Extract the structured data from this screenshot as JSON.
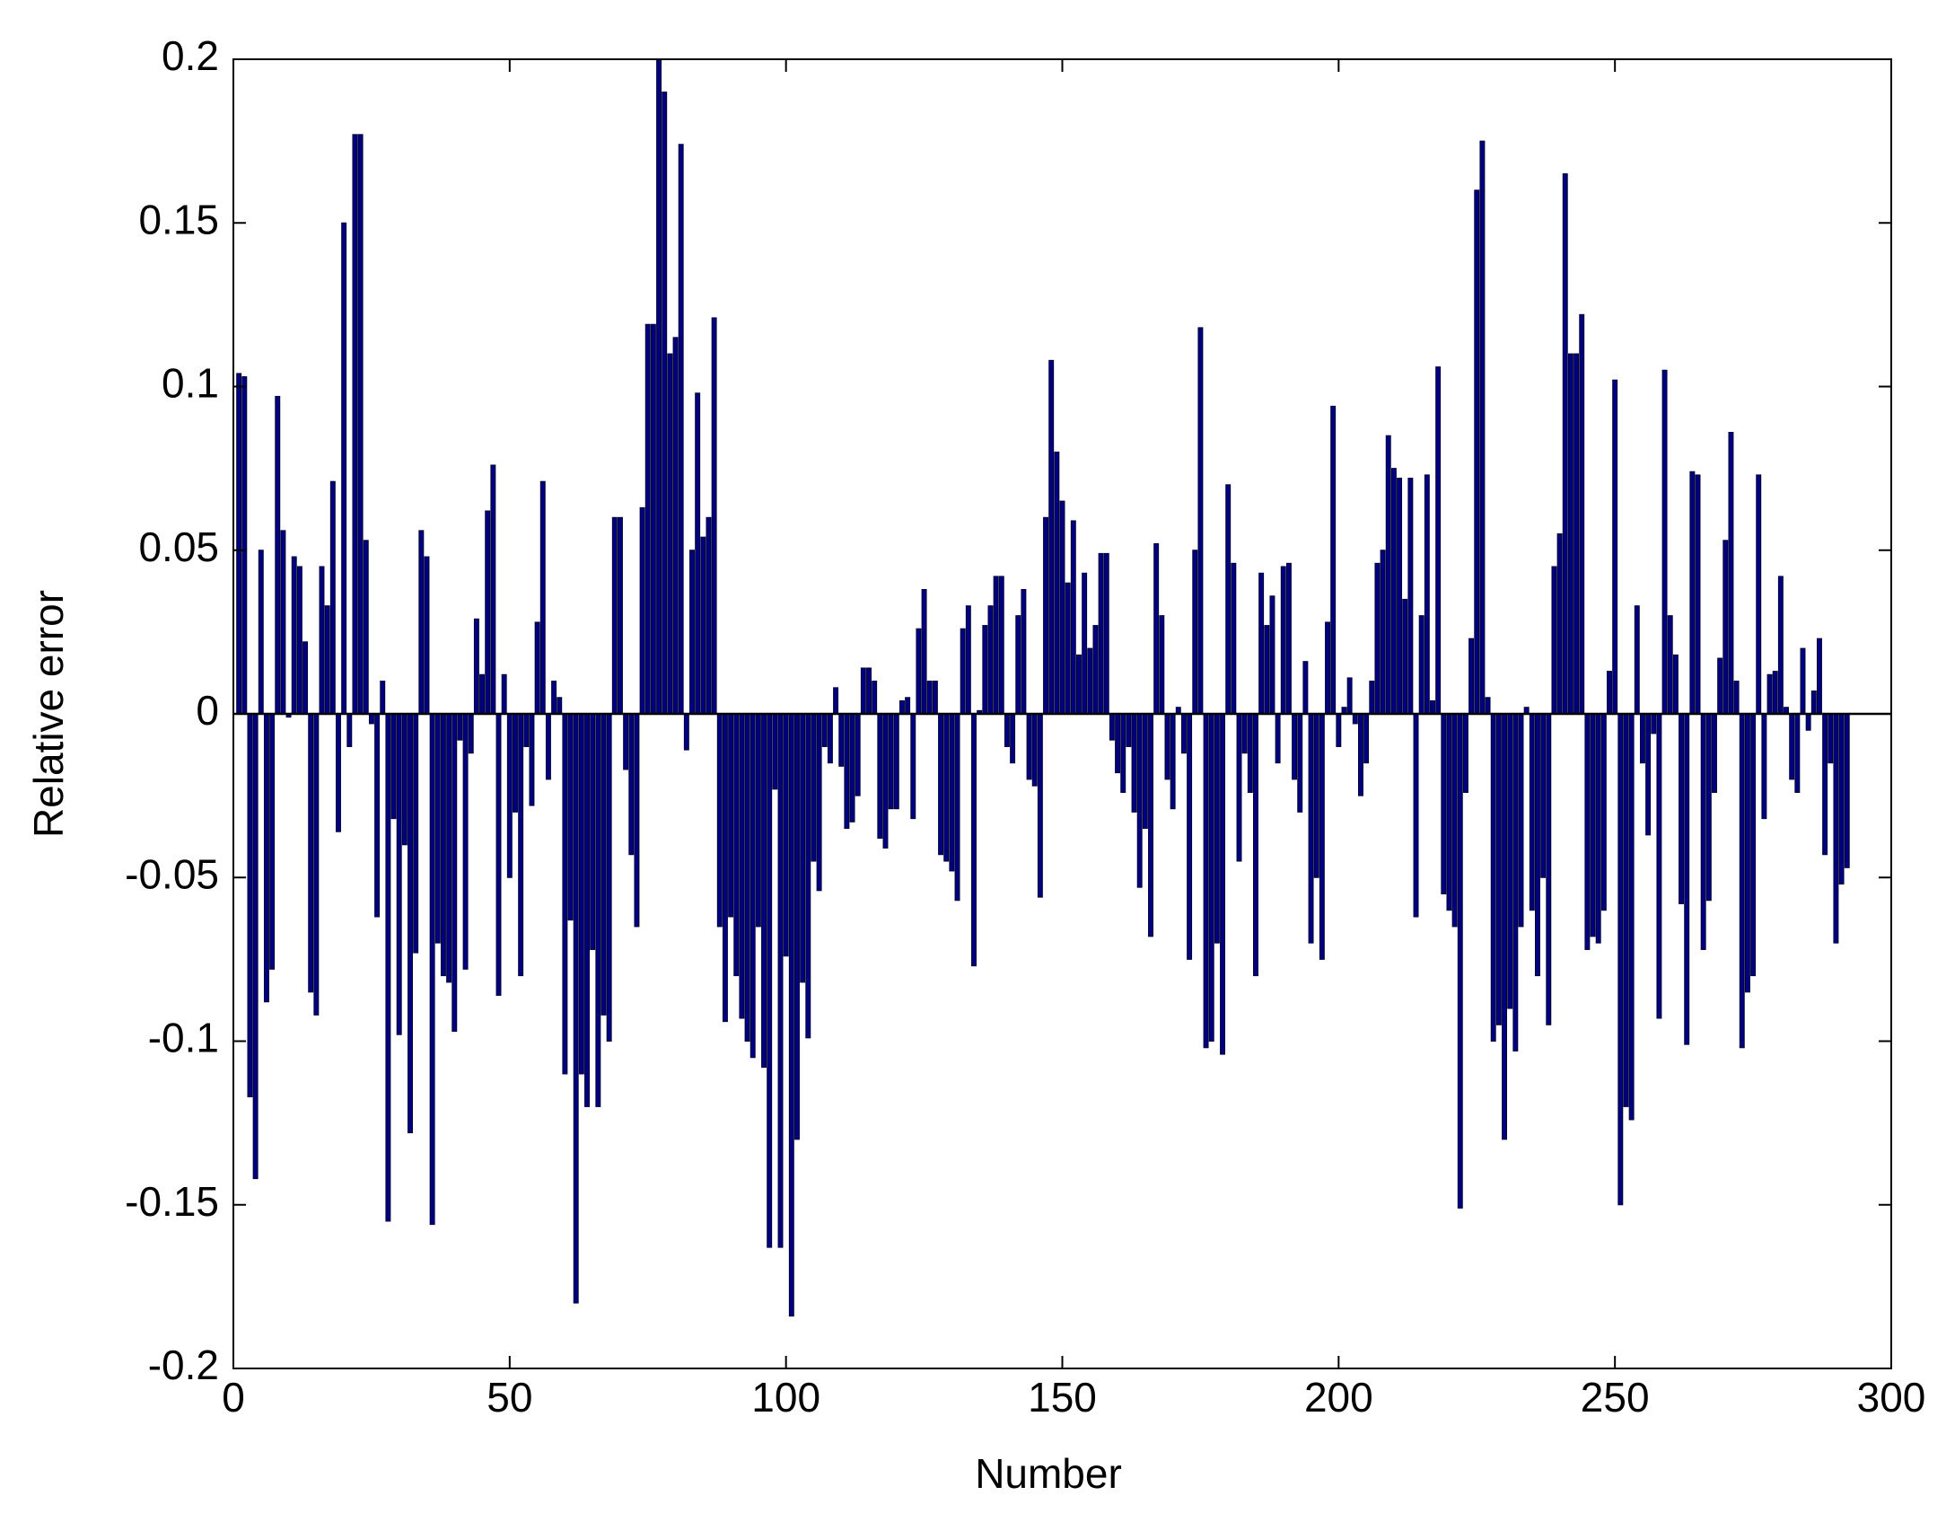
{
  "chart_data": {
    "type": "bar",
    "xlabel": "Number",
    "ylabel": "Relative error",
    "color": "#000080",
    "xlim": [
      0,
      300
    ],
    "xticks": [
      0,
      50,
      100,
      150,
      200,
      250,
      300
    ],
    "ylim": [
      -0.2,
      0.2
    ],
    "yticks": [
      -0.2,
      -0.15,
      -0.1,
      -0.05,
      0,
      0.05,
      0.1,
      0.15,
      0.2
    ],
    "values": [
      0.104,
      0.103,
      -0.117,
      -0.142,
      0.05,
      -0.088,
      -0.078,
      0.097,
      0.056,
      -0.001,
      0.048,
      0.045,
      0.022,
      -0.085,
      -0.092,
      0.045,
      0.033,
      0.071,
      -0.036,
      0.15,
      -0.01,
      0.177,
      0.177,
      0.053,
      -0.003,
      -0.062,
      0.01,
      -0.155,
      -0.032,
      -0.098,
      -0.04,
      -0.128,
      -0.073,
      0.056,
      0.048,
      -0.156,
      -0.07,
      -0.08,
      -0.082,
      -0.097,
      -0.008,
      -0.078,
      -0.012,
      0.029,
      0.012,
      0.062,
      0.076,
      -0.086,
      0.012,
      -0.05,
      -0.03,
      -0.08,
      -0.01,
      -0.028,
      0.028,
      0.071,
      -0.02,
      0.01,
      0.005,
      -0.11,
      -0.063,
      -0.18,
      -0.11,
      -0.12,
      -0.072,
      -0.12,
      -0.092,
      -0.1,
      0.06,
      0.06,
      -0.017,
      -0.043,
      -0.065,
      0.063,
      0.119,
      0.119,
      0.2,
      0.19,
      0.11,
      0.115,
      0.174,
      -0.011,
      0.05,
      0.098,
      0.054,
      0.06,
      0.121,
      -0.065,
      -0.094,
      -0.062,
      -0.08,
      -0.093,
      -0.1,
      -0.105,
      -0.065,
      -0.108,
      -0.163,
      -0.023,
      -0.163,
      -0.074,
      -0.184,
      -0.13,
      -0.082,
      -0.099,
      -0.045,
      -0.054,
      -0.01,
      -0.015,
      0.008,
      -0.016,
      -0.035,
      -0.033,
      -0.025,
      0.014,
      0.014,
      0.01,
      -0.038,
      -0.041,
      -0.029,
      -0.029,
      0.004,
      0.005,
      -0.032,
      0.026,
      0.038,
      0.01,
      0.01,
      -0.043,
      -0.045,
      -0.048,
      -0.057,
      0.026,
      0.033,
      -0.077,
      0.001,
      0.027,
      0.033,
      0.042,
      0.042,
      -0.01,
      -0.015,
      0.03,
      0.038,
      -0.02,
      -0.022,
      -0.056,
      0.06,
      0.108,
      0.08,
      0.065,
      0.04,
      0.059,
      0.018,
      0.043,
      0.02,
      0.027,
      0.049,
      0.049,
      -0.008,
      -0.018,
      -0.024,
      -0.01,
      -0.03,
      -0.053,
      -0.035,
      -0.068,
      0.052,
      0.03,
      -0.02,
      -0.029,
      0.002,
      -0.012,
      -0.075,
      0.05,
      0.118,
      -0.102,
      -0.1,
      -0.07,
      -0.104,
      0.07,
      0.046,
      -0.045,
      -0.012,
      -0.024,
      -0.08,
      0.043,
      0.027,
      0.036,
      -0.015,
      0.045,
      0.046,
      -0.02,
      -0.03,
      0.016,
      -0.07,
      -0.05,
      -0.075,
      0.028,
      0.094,
      -0.01,
      0.002,
      0.011,
      -0.003,
      -0.025,
      -0.015,
      0.01,
      0.046,
      0.05,
      0.085,
      0.075,
      0.072,
      0.035,
      0.072,
      -0.062,
      0.03,
      0.073,
      0.004,
      0.106,
      -0.055,
      -0.06,
      -0.065,
      -0.151,
      -0.024,
      0.023,
      0.16,
      0.175,
      0.005,
      -0.1,
      -0.095,
      -0.13,
      -0.09,
      -0.103,
      -0.065,
      0.002,
      -0.06,
      -0.08,
      -0.05,
      -0.095,
      0.045,
      0.055,
      0.165,
      0.11,
      0.11,
      0.122,
      -0.072,
      -0.068,
      -0.07,
      -0.06,
      0.013,
      0.102,
      -0.15,
      -0.12,
      -0.124,
      0.033,
      -0.015,
      -0.037,
      -0.006,
      -0.093,
      0.105,
      0.03,
      0.018,
      -0.058,
      -0.101,
      0.074,
      0.073,
      -0.072,
      -0.057,
      -0.024,
      0.017,
      0.053,
      0.086,
      0.01,
      -0.102,
      -0.085,
      -0.08,
      0.073,
      -0.032,
      0.012,
      0.013,
      0.042,
      0.002,
      -0.02,
      -0.024,
      0.02,
      -0.005,
      0.007,
      0.023,
      -0.043,
      -0.015,
      -0.07,
      -0.052,
      -0.047
    ]
  }
}
